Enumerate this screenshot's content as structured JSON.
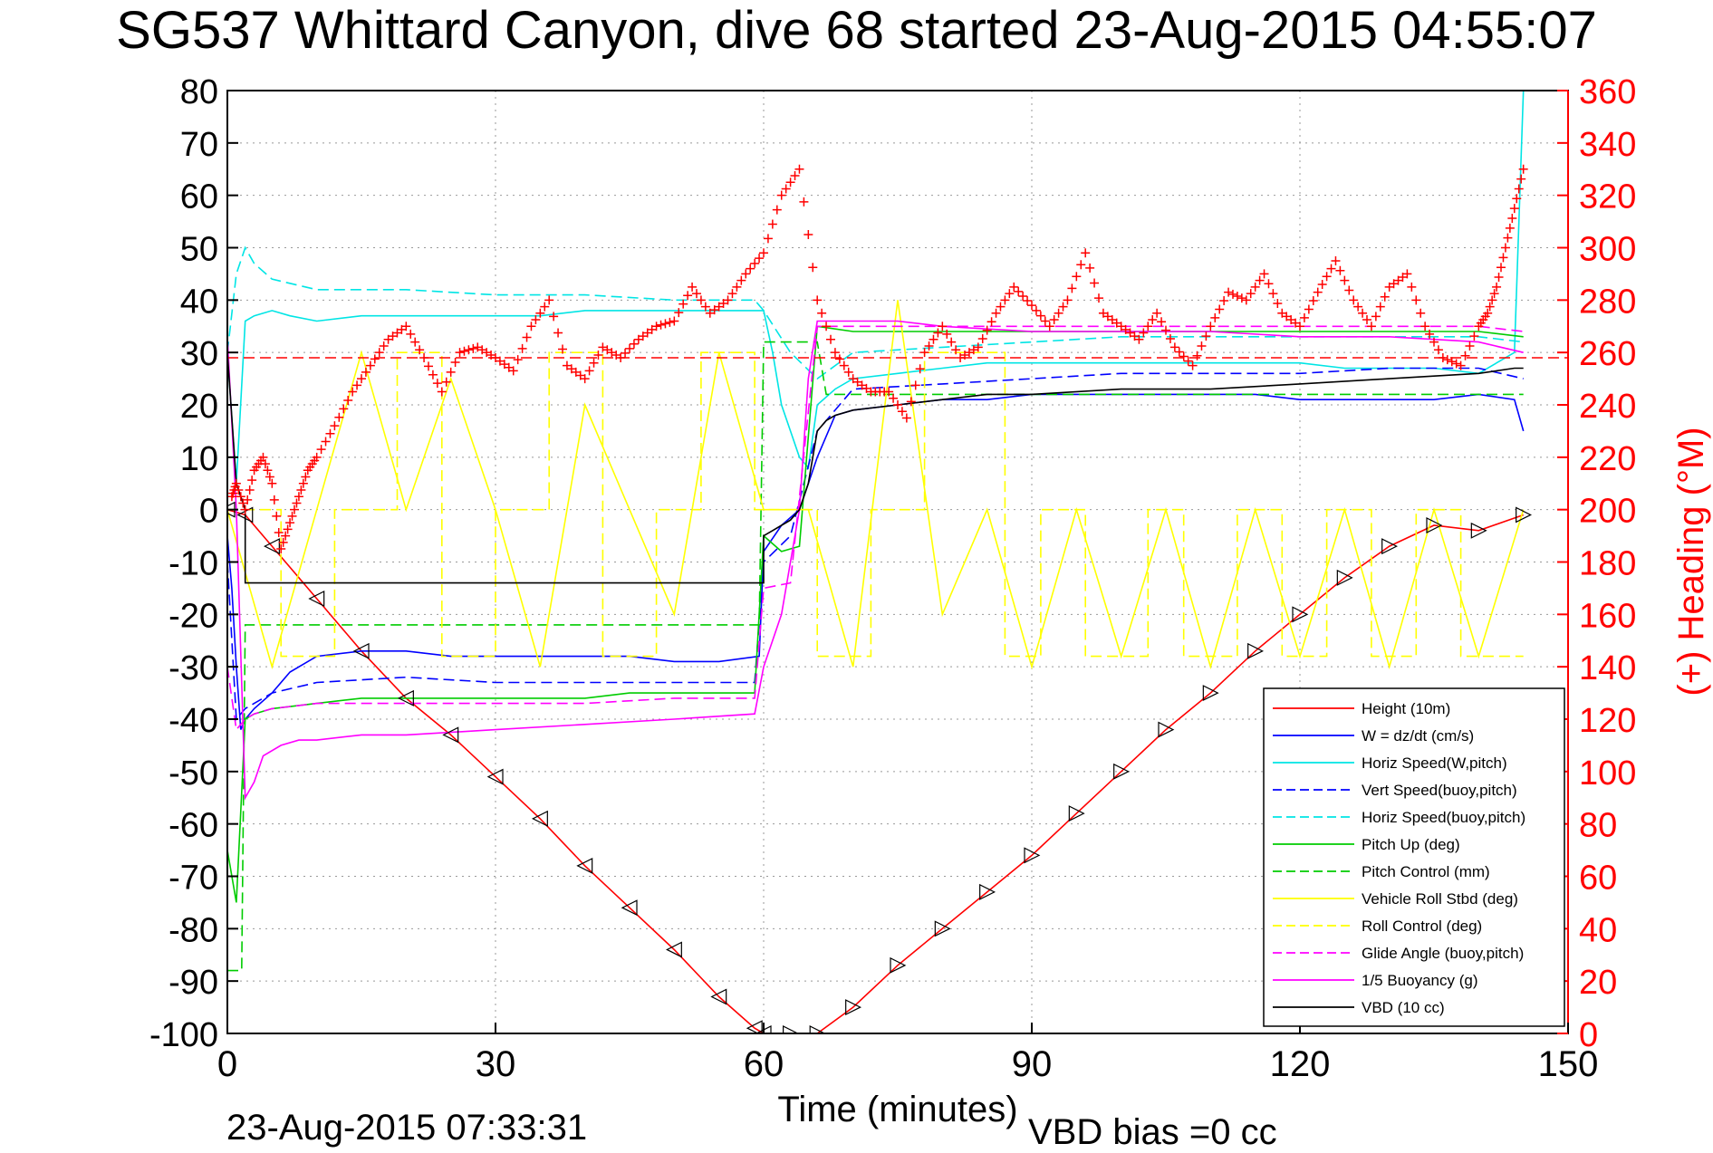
{
  "title": "SG537 Whittard Canyon, dive 68 started 23-Aug-2015 04:55:07",
  "footer": {
    "timestamp": "23-Aug-2015 07:33:31",
    "vbd_bias": "VBD bias =0 cc"
  },
  "colors": {
    "height": "#ff0000",
    "w": "#0000ff",
    "horiz": "#00e5e5",
    "pitch": "#00cc00",
    "roll": "#ffff00",
    "glide": "#ff00ff",
    "buoy": "#ff00ff",
    "vbd": "#000000",
    "heading": "#ff0000"
  },
  "chart_data": {
    "type": "line",
    "title": "SG537 Whittard Canyon, dive 68 started 23-Aug-2015 04:55:07",
    "xlabel": "Time (minutes)",
    "ylabel": "",
    "y2label": "(+) Heading (°M)",
    "xlim": [
      0,
      150
    ],
    "ylim": [
      -100,
      80
    ],
    "y2lim": [
      0,
      360
    ],
    "xticks": [
      0,
      30,
      60,
      90,
      120,
      150
    ],
    "yticks": [
      80,
      70,
      60,
      50,
      40,
      30,
      20,
      10,
      0,
      -10,
      -20,
      -30,
      -40,
      -50,
      -60,
      -70,
      -80,
      -90,
      -100
    ],
    "y2ticks": [
      360,
      340,
      320,
      300,
      280,
      260,
      240,
      220,
      200,
      180,
      160,
      140,
      120,
      100,
      80,
      60,
      40,
      20,
      0
    ],
    "grid": true,
    "legend_position": "bottom-right",
    "legend": [
      {
        "label": "Height (10m)",
        "color": "#ff0000",
        "style": "solid"
      },
      {
        "label": "W = dz/dt (cm/s)",
        "color": "#0000ff",
        "style": "solid"
      },
      {
        "label": "Horiz Speed(W,pitch)",
        "color": "#00e5e5",
        "style": "solid"
      },
      {
        "label": "Vert Speed(buoy,pitch)",
        "color": "#0000ff",
        "style": "dashed"
      },
      {
        "label": "Horiz Speed(buoy,pitch)",
        "color": "#00e5e5",
        "style": "dashed"
      },
      {
        "label": "Pitch Up (deg)",
        "color": "#00cc00",
        "style": "solid"
      },
      {
        "label": "Pitch Control (mm)",
        "color": "#00cc00",
        "style": "dashed"
      },
      {
        "label": "Vehicle Roll Stbd (deg)",
        "color": "#ffff00",
        "style": "solid"
      },
      {
        "label": "Roll Control (deg)",
        "color": "#ffff00",
        "style": "dashed"
      },
      {
        "label": "Glide Angle (buoy,pitch)",
        "color": "#ff00ff",
        "style": "dashed"
      },
      {
        "label": "1/5 Buoyancy (g)",
        "color": "#ff00ff",
        "style": "solid"
      },
      {
        "label": "VBD (10 cc)",
        "color": "#000000",
        "style": "solid"
      }
    ],
    "series": [
      {
        "key": "height",
        "color": "#ff0000",
        "dash": "",
        "x": [
          0,
          2,
          5,
          10,
          15,
          20,
          25,
          30,
          35,
          40,
          45,
          50,
          55,
          59,
          60,
          63,
          66,
          70,
          75,
          80,
          85,
          90,
          95,
          100,
          105,
          110,
          115,
          120,
          125,
          130,
          135,
          140,
          145
        ],
        "y": [
          0,
          -1,
          -7,
          -17,
          -27,
          -36,
          -43,
          -51,
          -59,
          -68,
          -76,
          -84,
          -93,
          -99,
          -100,
          -100,
          -100,
          -95,
          -87,
          -80,
          -73,
          -66,
          -58,
          -50,
          -42,
          -35,
          -27,
          -20,
          -13,
          -7,
          -3,
          -4,
          -1
        ]
      },
      {
        "key": "w",
        "color": "#0000ff",
        "dash": "",
        "x": [
          0,
          0.5,
          1,
          1.5,
          2,
          3,
          5,
          7,
          10,
          15,
          20,
          25,
          30,
          35,
          40,
          45,
          50,
          55,
          59.5,
          60,
          62,
          64,
          66,
          68,
          70,
          75,
          80,
          85,
          90,
          95,
          100,
          105,
          110,
          115,
          120,
          125,
          130,
          135,
          140,
          144,
          145
        ],
        "y": [
          -5,
          -15,
          -30,
          -42,
          -40,
          -38,
          -35,
          -31,
          -28,
          -27,
          -27,
          -28,
          -28,
          -28,
          -28,
          -28,
          -29,
          -29,
          -28,
          -8,
          -3,
          0,
          10,
          18,
          19,
          20,
          21,
          21,
          22,
          22,
          22,
          22,
          22,
          22,
          21,
          21,
          21,
          21,
          22,
          21,
          15
        ]
      },
      {
        "key": "horiz",
        "color": "#00e5e5",
        "dash": "",
        "x": [
          0,
          1,
          2,
          3,
          5,
          7,
          10,
          15,
          20,
          25,
          30,
          35,
          40,
          45,
          50,
          55,
          59,
          60,
          61,
          62,
          63,
          64,
          65,
          66,
          68,
          70,
          75,
          80,
          85,
          90,
          95,
          100,
          105,
          110,
          115,
          120,
          125,
          130,
          135,
          140,
          144,
          145
        ],
        "y": [
          30,
          5,
          36,
          37,
          38,
          37,
          36,
          37,
          37,
          37,
          37,
          37,
          38,
          38,
          38,
          38,
          38,
          38,
          30,
          20,
          15,
          10,
          8,
          20,
          23,
          25,
          26,
          27,
          28,
          28,
          28,
          28,
          28,
          28,
          28,
          28,
          27,
          27,
          27,
          26,
          30,
          80
        ]
      },
      {
        "key": "vertbuoy",
        "color": "#0000ff",
        "dash": "12,6",
        "x": [
          0,
          1,
          2,
          3,
          5,
          10,
          20,
          30,
          40,
          50,
          59,
          60,
          63,
          66,
          70,
          80,
          90,
          100,
          110,
          120,
          130,
          140,
          145
        ],
        "y": [
          -10,
          -40,
          -38,
          -37,
          -35,
          -33,
          -32,
          -33,
          -33,
          -33,
          -33,
          -10,
          -5,
          15,
          23,
          24,
          25,
          26,
          26,
          26,
          27,
          27,
          25
        ]
      },
      {
        "key": "horizbuoy",
        "color": "#00e5e5",
        "dash": "12,6",
        "x": [
          0,
          1,
          2,
          3,
          5,
          10,
          20,
          30,
          40,
          50,
          59,
          60,
          63,
          66,
          70,
          80,
          90,
          100,
          110,
          120,
          130,
          140,
          145
        ],
        "y": [
          30,
          45,
          50,
          47,
          44,
          42,
          42,
          41,
          41,
          40,
          40,
          38,
          30,
          25,
          30,
          31,
          32,
          33,
          33,
          33,
          33,
          33,
          32
        ]
      },
      {
        "key": "pitch",
        "color": "#00cc00",
        "dash": "",
        "x": [
          0,
          1,
          2,
          3,
          5,
          10,
          15,
          20,
          25,
          30,
          35,
          40,
          45,
          50,
          55,
          59,
          60,
          62,
          64,
          66,
          70,
          80,
          90,
          100,
          110,
          120,
          130,
          140,
          145
        ],
        "y": [
          -65,
          -75,
          -40,
          -39,
          -38,
          -37,
          -36,
          -36,
          -36,
          -36,
          -36,
          -36,
          -35,
          -35,
          -35,
          -35,
          -5,
          -8,
          -7,
          35,
          34,
          34,
          34,
          34,
          34,
          34,
          34,
          34,
          33
        ]
      },
      {
        "key": "pitchctl",
        "color": "#00cc00",
        "dash": "12,6",
        "x": [
          0,
          1,
          1.6,
          2,
          59.5,
          60,
          66,
          67,
          68,
          78,
          79,
          145
        ],
        "y": [
          -88,
          -88,
          -88,
          -22,
          -22,
          32,
          32,
          22,
          22,
          22,
          22,
          22
        ]
      },
      {
        "key": "roll",
        "color": "#ffff00",
        "dash": "",
        "x": [
          0,
          5,
          10,
          15,
          20,
          25,
          30,
          35,
          40,
          45,
          50,
          55,
          60,
          65,
          70,
          75,
          80,
          85,
          90,
          95,
          100,
          105,
          110,
          115,
          120,
          125,
          130,
          135,
          140,
          145
        ],
        "y": [
          0,
          -30,
          0,
          30,
          0,
          25,
          0,
          -30,
          20,
          0,
          -20,
          30,
          0,
          0,
          -30,
          40,
          -20,
          0,
          -30,
          0,
          -28,
          0,
          -30,
          0,
          -28,
          0,
          -30,
          0,
          -28,
          0
        ]
      },
      {
        "key": "rollctl",
        "color": "#ffff00",
        "dash": "12,6",
        "x": [
          0,
          6,
          6,
          12,
          12,
          19,
          19,
          24,
          24,
          30,
          30,
          36,
          36,
          42,
          42,
          48,
          48,
          53,
          53,
          59,
          59,
          66,
          66,
          72,
          72,
          78,
          78,
          87,
          87,
          91,
          91,
          96,
          96,
          103,
          103,
          107,
          107,
          113,
          113,
          118,
          118,
          123,
          123,
          128,
          128,
          133,
          133,
          138,
          138,
          145
        ],
        "y": [
          0,
          0,
          -28,
          -28,
          0,
          0,
          30,
          30,
          -28,
          -28,
          0,
          0,
          30,
          30,
          -28,
          -28,
          0,
          0,
          30,
          30,
          0,
          0,
          -28,
          -28,
          0,
          0,
          30,
          30,
          -28,
          -28,
          0,
          0,
          -28,
          -28,
          0,
          0,
          -28,
          -28,
          0,
          0,
          -28,
          -28,
          0,
          0,
          -28,
          -28,
          0,
          0,
          -28,
          -28
        ]
      },
      {
        "key": "glide",
        "color": "#ff00ff",
        "dash": "12,6",
        "x": [
          0,
          1,
          2,
          3,
          5,
          10,
          20,
          30,
          40,
          50,
          59,
          60,
          63,
          66,
          70,
          80,
          90,
          100,
          110,
          120,
          130,
          140,
          145
        ],
        "y": [
          -30,
          -42,
          -40,
          -39,
          -38,
          -37,
          -37,
          -37,
          -37,
          -36,
          -36,
          -15,
          -14,
          35,
          35,
          35,
          35,
          35,
          35,
          35,
          35,
          35,
          34
        ]
      },
      {
        "key": "buoy",
        "color": "#ff00ff",
        "dash": "",
        "x": [
          0,
          1,
          2,
          3,
          4,
          6,
          8,
          10,
          15,
          20,
          30,
          40,
          50,
          59,
          60,
          62,
          63,
          64,
          65,
          66,
          70,
          75,
          80,
          90,
          100,
          110,
          120,
          130,
          140,
          145
        ],
        "y": [
          33,
          0,
          -55,
          -52,
          -47,
          -45,
          -44,
          -44,
          -43,
          -43,
          -42,
          -41,
          -40,
          -39,
          -30,
          -20,
          -10,
          0,
          25,
          36,
          36,
          36,
          35,
          34,
          34,
          34,
          33,
          33,
          32,
          30
        ]
      },
      {
        "key": "vbd",
        "color": "#000000",
        "dash": "",
        "x": [
          0,
          1,
          2,
          2,
          60,
          60,
          61,
          62,
          63,
          64,
          65,
          66,
          67,
          68,
          70,
          75,
          80,
          85,
          90,
          100,
          110,
          120,
          130,
          140,
          144,
          145
        ],
        "y": [
          30,
          5,
          0,
          -14,
          -14,
          -5,
          -4,
          -3,
          -2,
          0,
          5,
          15,
          17,
          18,
          19,
          20,
          21,
          22,
          22,
          23,
          23,
          24,
          25,
          26,
          27,
          27
        ]
      }
    ],
    "heading": {
      "axis": "right",
      "marker": "+",
      "color": "#ff0000",
      "x": [
        0.5,
        1,
        2,
        3,
        4,
        5,
        6,
        7,
        8,
        9,
        10,
        12,
        14,
        16,
        18,
        20,
        22,
        24,
        26,
        28,
        30,
        32,
        34,
        36,
        38,
        40,
        42,
        44,
        46,
        48,
        50,
        52,
        54,
        56,
        58,
        60,
        62,
        64,
        66,
        68,
        70,
        72,
        74,
        76,
        78,
        80,
        82,
        84,
        86,
        88,
        90,
        92,
        94,
        96,
        98,
        100,
        102,
        104,
        106,
        108,
        110,
        112,
        114,
        116,
        118,
        120,
        122,
        124,
        126,
        128,
        130,
        132,
        134,
        136,
        138,
        140,
        141,
        142,
        143,
        144,
        145
      ],
      "y": [
        205,
        210,
        200,
        215,
        220,
        210,
        185,
        195,
        205,
        215,
        220,
        232,
        245,
        255,
        265,
        270,
        258,
        245,
        260,
        262,
        258,
        253,
        270,
        280,
        255,
        250,
        262,
        258,
        265,
        270,
        272,
        285,
        275,
        280,
        290,
        298,
        320,
        330,
        280,
        260,
        250,
        245,
        245,
        235,
        260,
        270,
        258,
        262,
        275,
        285,
        278,
        270,
        280,
        298,
        275,
        270,
        265,
        275,
        262,
        255,
        270,
        283,
        280,
        290,
        275,
        270,
        283,
        295,
        280,
        270,
        285,
        290,
        270,
        258,
        255,
        270,
        275,
        285,
        300,
        315,
        330
      ]
    },
    "reference_line": {
      "axis": "right",
      "value": 258,
      "color": "#ff0000",
      "style": "dashed"
    }
  }
}
